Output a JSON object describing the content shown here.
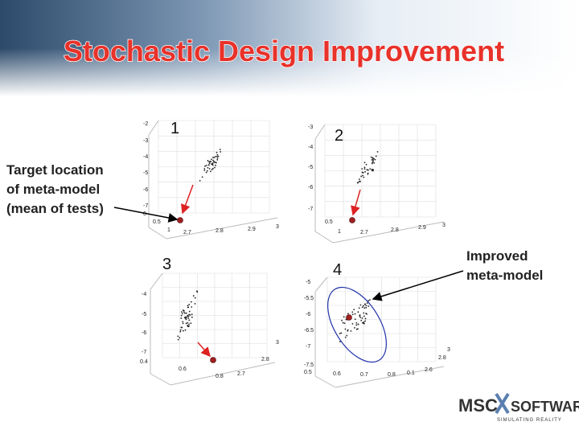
{
  "header": {
    "title": "Stochastic Design Improvement"
  },
  "panels": [
    {
      "label": "1",
      "ticks": [
        "-2",
        "-3",
        "-4",
        "-5",
        "-6",
        "-7",
        "0",
        "0.5",
        "1",
        "2.7",
        "2.8",
        "2.9",
        "3"
      ]
    },
    {
      "label": "2",
      "ticks": [
        "-3",
        "-4",
        "-5",
        "-6",
        "-7",
        "0.5",
        "1",
        "2.7",
        "2.8",
        "2.9",
        "3"
      ]
    },
    {
      "label": "3",
      "ticks": [
        "-4",
        "-5",
        "-6",
        "-7",
        "0.4",
        "0.6",
        "0.8",
        "2.7",
        "2.8",
        "3"
      ]
    },
    {
      "label": "4",
      "ticks": [
        "-5",
        "-5.5",
        "-6",
        "-6.5",
        "-7",
        "-7.5",
        "0.5",
        "0.6",
        "0.7",
        "0.8",
        "0.1",
        "2.6",
        "2.8",
        "3"
      ]
    }
  ],
  "annotations": {
    "target": [
      "Target location",
      "of meta-model",
      "(mean of tests)"
    ],
    "improved": [
      "Improved",
      "meta-model"
    ]
  },
  "logo": {
    "brand": "MSC",
    "product": "SOFTWARE",
    "tagline": "SIMULATING REALITY"
  }
}
